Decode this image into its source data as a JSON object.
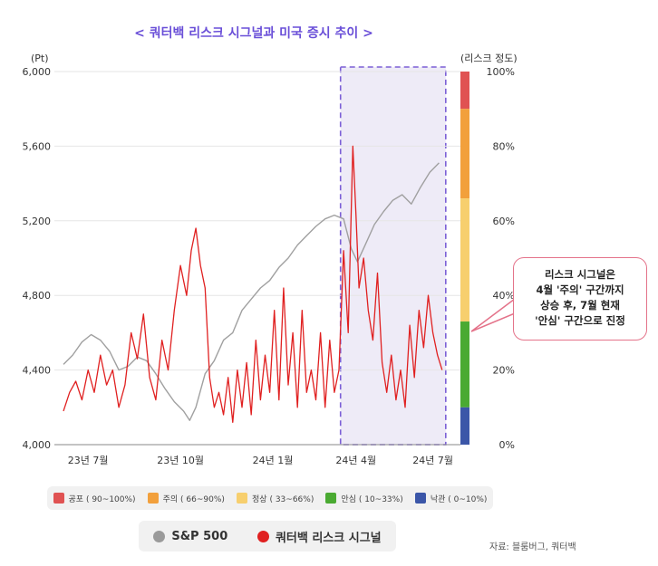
{
  "title": "< 쿼터백 리스크 시그널과 미국 증시 추이 >",
  "left_unit": "(Pt)",
  "right_unit": "(리스크 정도)",
  "colors": {
    "sp500": "#a0a0a0",
    "risk": "#e02020",
    "highlight_border": "#7b5fd6",
    "highlight_fill": "#eeebf7",
    "title": "#6a4fd8"
  },
  "callout": {
    "lines": [
      "리스크 시그널은",
      "4월 '주의' 구간까지",
      "상승 후, 7월 현재",
      "'안심' 구간으로 진정"
    ]
  },
  "risk_zones": [
    {
      "label": "공포 ( 90~100%)",
      "min": 90,
      "max": 100,
      "color": "#e05252"
    },
    {
      "label": "주의 ( 66~90%)",
      "min": 66,
      "max": 90,
      "color": "#f2a03c"
    },
    {
      "label": "정상 ( 33~66%)",
      "min": 33,
      "max": 66,
      "color": "#f7cf6e"
    },
    {
      "label": "안심 ( 10~33%)",
      "min": 10,
      "max": 33,
      "color": "#4aaa32"
    },
    {
      "label": "낙관 ( 0~10%)",
      "min": 0,
      "max": 10,
      "color": "#3b56a8"
    }
  ],
  "series_legend": [
    {
      "name": "S&P 500",
      "color": "#a0a0a0"
    },
    {
      "name": "쿼터백 리스크 시그널",
      "color": "#e02020"
    }
  ],
  "source": "자료: 블룸버그, 쿼터백",
  "chart_data": {
    "type": "line",
    "x_ticks": [
      "23년 7월",
      "23년 10월",
      "24년 1월",
      "24년 4월",
      "24년 7월"
    ],
    "y_left": {
      "ticks": [
        "4,000",
        "4,400",
        "4,800",
        "5,200",
        "5,600",
        "6,000"
      ],
      "range": [
        4000,
        6000
      ]
    },
    "y_right": {
      "ticks": [
        "0%",
        "20%",
        "40%",
        "60%",
        "80%",
        "100%"
      ],
      "range": [
        0,
        100
      ]
    },
    "highlight_range_months": [
      9.0,
      12.3
    ],
    "series": [
      {
        "name": "S&P 500",
        "axis": "left",
        "points": [
          [
            0.0,
            4430
          ],
          [
            0.3,
            4480
          ],
          [
            0.6,
            4550
          ],
          [
            0.9,
            4590
          ],
          [
            1.2,
            4560
          ],
          [
            1.5,
            4500
          ],
          [
            1.8,
            4400
          ],
          [
            2.1,
            4420
          ],
          [
            2.4,
            4470
          ],
          [
            2.7,
            4450
          ],
          [
            3.0,
            4380
          ],
          [
            3.3,
            4300
          ],
          [
            3.6,
            4230
          ],
          [
            3.9,
            4180
          ],
          [
            4.1,
            4130
          ],
          [
            4.3,
            4200
          ],
          [
            4.6,
            4380
          ],
          [
            4.9,
            4450
          ],
          [
            5.2,
            4560
          ],
          [
            5.5,
            4600
          ],
          [
            5.8,
            4720
          ],
          [
            6.1,
            4780
          ],
          [
            6.4,
            4840
          ],
          [
            6.7,
            4880
          ],
          [
            7.0,
            4950
          ],
          [
            7.3,
            5000
          ],
          [
            7.6,
            5070
          ],
          [
            7.9,
            5120
          ],
          [
            8.2,
            5170
          ],
          [
            8.5,
            5210
          ],
          [
            8.8,
            5230
          ],
          [
            9.1,
            5210
          ],
          [
            9.35,
            5050
          ],
          [
            9.55,
            4980
          ],
          [
            9.8,
            5070
          ],
          [
            10.1,
            5180
          ],
          [
            10.4,
            5250
          ],
          [
            10.7,
            5310
          ],
          [
            11.0,
            5340
          ],
          [
            11.3,
            5290
          ],
          [
            11.6,
            5380
          ],
          [
            11.9,
            5460
          ],
          [
            12.2,
            5510
          ]
        ]
      },
      {
        "name": "쿼터백 리스크 시그널",
        "axis": "right",
        "points": [
          [
            0.0,
            9
          ],
          [
            0.2,
            14
          ],
          [
            0.4,
            17
          ],
          [
            0.6,
            12
          ],
          [
            0.8,
            20
          ],
          [
            1.0,
            14
          ],
          [
            1.2,
            24
          ],
          [
            1.4,
            16
          ],
          [
            1.6,
            20
          ],
          [
            1.8,
            10
          ],
          [
            2.0,
            16
          ],
          [
            2.2,
            30
          ],
          [
            2.4,
            23
          ],
          [
            2.6,
            35
          ],
          [
            2.8,
            18
          ],
          [
            3.0,
            12
          ],
          [
            3.2,
            28
          ],
          [
            3.4,
            20
          ],
          [
            3.6,
            36
          ],
          [
            3.8,
            48
          ],
          [
            4.0,
            40
          ],
          [
            4.15,
            52
          ],
          [
            4.3,
            58
          ],
          [
            4.45,
            48
          ],
          [
            4.6,
            42
          ],
          [
            4.75,
            18
          ],
          [
            4.9,
            10
          ],
          [
            5.05,
            14
          ],
          [
            5.2,
            8
          ],
          [
            5.35,
            18
          ],
          [
            5.5,
            6
          ],
          [
            5.65,
            20
          ],
          [
            5.8,
            10
          ],
          [
            5.95,
            22
          ],
          [
            6.1,
            8
          ],
          [
            6.25,
            28
          ],
          [
            6.4,
            12
          ],
          [
            6.55,
            24
          ],
          [
            6.7,
            14
          ],
          [
            6.85,
            36
          ],
          [
            7.0,
            12
          ],
          [
            7.15,
            42
          ],
          [
            7.3,
            16
          ],
          [
            7.45,
            30
          ],
          [
            7.6,
            10
          ],
          [
            7.75,
            36
          ],
          [
            7.9,
            14
          ],
          [
            8.05,
            20
          ],
          [
            8.2,
            12
          ],
          [
            8.35,
            30
          ],
          [
            8.5,
            10
          ],
          [
            8.65,
            28
          ],
          [
            8.8,
            14
          ],
          [
            8.95,
            20
          ],
          [
            9.1,
            52
          ],
          [
            9.25,
            30
          ],
          [
            9.4,
            80
          ],
          [
            9.5,
            62
          ],
          [
            9.6,
            42
          ],
          [
            9.75,
            50
          ],
          [
            9.9,
            36
          ],
          [
            10.05,
            28
          ],
          [
            10.2,
            46
          ],
          [
            10.35,
            22
          ],
          [
            10.5,
            14
          ],
          [
            10.65,
            24
          ],
          [
            10.8,
            12
          ],
          [
            10.95,
            20
          ],
          [
            11.1,
            10
          ],
          [
            11.25,
            32
          ],
          [
            11.4,
            18
          ],
          [
            11.55,
            36
          ],
          [
            11.7,
            26
          ],
          [
            11.85,
            40
          ],
          [
            12.0,
            30
          ],
          [
            12.15,
            24
          ],
          [
            12.3,
            20
          ]
        ]
      }
    ]
  }
}
